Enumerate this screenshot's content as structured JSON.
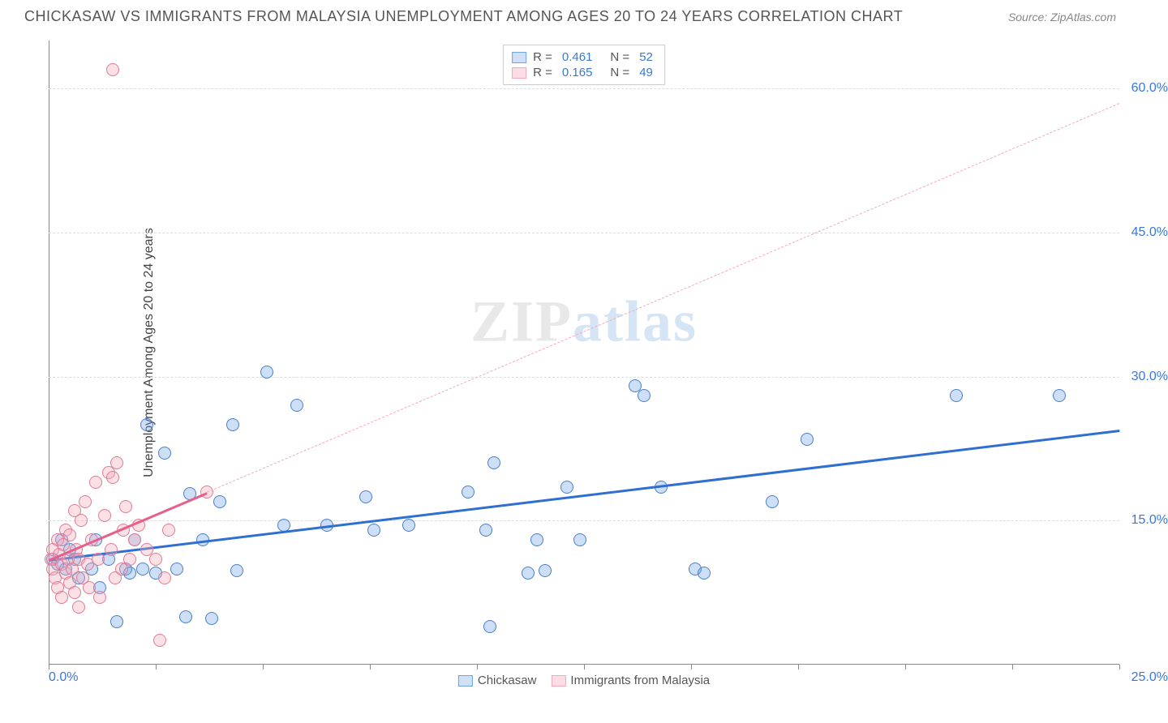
{
  "title": "CHICKASAW VS IMMIGRANTS FROM MALAYSIA UNEMPLOYMENT AMONG AGES 20 TO 24 YEARS CORRELATION CHART",
  "source": "Source: ZipAtlas.com",
  "ylabel": "Unemployment Among Ages 20 to 24 years",
  "watermark_a": "ZIP",
  "watermark_b": "atlas",
  "chart": {
    "type": "scatter",
    "background_color": "#ffffff",
    "grid_color": "#dddddd",
    "axis_color": "#888888",
    "text_color": "#555555",
    "value_color": "#3a78d6",
    "xlim": [
      0,
      25
    ],
    "ylim": [
      0,
      65
    ],
    "xtick_labels": {
      "min": "0.0%",
      "max": "25.0%"
    },
    "xtick_positions": [
      0,
      2.5,
      5,
      7.5,
      10,
      12.5,
      15,
      17.5,
      20,
      22.5,
      25
    ],
    "ytick_labels": [
      {
        "pos": 15,
        "label": "15.0%"
      },
      {
        "pos": 30,
        "label": "30.0%"
      },
      {
        "pos": 45,
        "label": "45.0%"
      },
      {
        "pos": 60,
        "label": "60.0%"
      }
    ],
    "marker_radius": 8,
    "marker_stroke": 1.5,
    "marker_fill_opacity": 0.35,
    "series": [
      {
        "name": "Chickasaw",
        "color": "#6fa3e8",
        "stroke": "#4a7fc9",
        "R": "0.461",
        "N": "52",
        "trend": {
          "x1": 0,
          "y1": 11,
          "x2": 25,
          "y2": 24.5,
          "dash": false,
          "width": 3,
          "color": "#2f6fd1"
        },
        "points": [
          [
            0.1,
            11
          ],
          [
            0.2,
            10.5
          ],
          [
            0.3,
            13
          ],
          [
            0.4,
            10
          ],
          [
            0.5,
            12
          ],
          [
            0.6,
            11
          ],
          [
            0.7,
            9
          ],
          [
            1.0,
            10
          ],
          [
            1.1,
            13
          ],
          [
            1.2,
            8
          ],
          [
            1.4,
            11
          ],
          [
            1.6,
            4.5
          ],
          [
            1.8,
            10
          ],
          [
            1.9,
            9.5
          ],
          [
            2.0,
            13
          ],
          [
            2.2,
            10
          ],
          [
            2.3,
            25
          ],
          [
            2.5,
            9.5
          ],
          [
            2.7,
            22
          ],
          [
            3.0,
            10
          ],
          [
            3.2,
            5
          ],
          [
            3.3,
            17.8
          ],
          [
            3.6,
            13
          ],
          [
            3.8,
            4.8
          ],
          [
            4.0,
            17
          ],
          [
            4.3,
            25
          ],
          [
            4.4,
            9.8
          ],
          [
            5.1,
            30.5
          ],
          [
            5.5,
            14.5
          ],
          [
            5.8,
            27
          ],
          [
            6.5,
            14.5
          ],
          [
            7.4,
            17.5
          ],
          [
            7.6,
            14
          ],
          [
            8.4,
            14.5
          ],
          [
            9.8,
            18
          ],
          [
            10.2,
            14
          ],
          [
            10.3,
            4
          ],
          [
            10.4,
            21
          ],
          [
            11.2,
            9.5
          ],
          [
            11.4,
            13
          ],
          [
            11.6,
            9.8
          ],
          [
            12.1,
            18.5
          ],
          [
            12.4,
            13
          ],
          [
            13.7,
            29
          ],
          [
            13.9,
            28
          ],
          [
            14.3,
            18.5
          ],
          [
            15.1,
            10
          ],
          [
            15.3,
            9.5
          ],
          [
            16.9,
            17
          ],
          [
            17.7,
            23.5
          ],
          [
            21.2,
            28
          ],
          [
            23.6,
            28
          ]
        ]
      },
      {
        "name": "Immigrants from Malaysia",
        "color": "#f4a8b8",
        "stroke": "#e17a94",
        "R": "0.165",
        "N": "49",
        "trend_solid": {
          "x1": 0,
          "y1": 11,
          "x2": 3.7,
          "y2": 18,
          "dash": false,
          "width": 3,
          "color": "#e85f8a"
        },
        "trend_dashed": {
          "x1": 3.7,
          "y1": 18,
          "x2": 25,
          "y2": 58.5,
          "dash": true,
          "width": 1.5,
          "color": "#f4a8b8"
        },
        "points": [
          [
            0.05,
            11
          ],
          [
            0.1,
            10
          ],
          [
            0.1,
            12
          ],
          [
            0.15,
            9
          ],
          [
            0.2,
            13
          ],
          [
            0.2,
            8
          ],
          [
            0.25,
            11.5
          ],
          [
            0.3,
            10.5
          ],
          [
            0.3,
            7
          ],
          [
            0.35,
            12.5
          ],
          [
            0.4,
            9.5
          ],
          [
            0.4,
            14
          ],
          [
            0.45,
            11
          ],
          [
            0.5,
            8.5
          ],
          [
            0.5,
            13.5
          ],
          [
            0.55,
            10
          ],
          [
            0.6,
            16
          ],
          [
            0.6,
            7.5
          ],
          [
            0.65,
            12
          ],
          [
            0.7,
            11
          ],
          [
            0.7,
            6
          ],
          [
            0.75,
            15
          ],
          [
            0.8,
            9
          ],
          [
            0.85,
            17
          ],
          [
            0.9,
            10.5
          ],
          [
            0.95,
            8
          ],
          [
            1.0,
            13
          ],
          [
            1.1,
            19
          ],
          [
            1.15,
            11
          ],
          [
            1.2,
            7
          ],
          [
            1.3,
            15.5
          ],
          [
            1.4,
            20
          ],
          [
            1.45,
            12
          ],
          [
            1.5,
            19.5
          ],
          [
            1.55,
            9
          ],
          [
            1.6,
            21
          ],
          [
            1.7,
            10
          ],
          [
            1.75,
            14
          ],
          [
            1.8,
            16.5
          ],
          [
            1.9,
            11
          ],
          [
            2.0,
            13
          ],
          [
            2.1,
            14.5
          ],
          [
            2.3,
            12
          ],
          [
            2.5,
            11
          ],
          [
            2.6,
            2.5
          ],
          [
            2.7,
            9
          ],
          [
            2.8,
            14
          ],
          [
            1.5,
            62
          ],
          [
            3.7,
            18
          ]
        ]
      }
    ]
  },
  "legend_bottom": [
    {
      "label": "Chickasaw",
      "swatch_fill": "#cfe0f7",
      "swatch_border": "#6fa3e8"
    },
    {
      "label": "Immigrants from Malaysia",
      "swatch_fill": "#fcdde5",
      "swatch_border": "#f4a8b8"
    }
  ],
  "legend_top_labels": {
    "R": "R =",
    "N": "N ="
  }
}
